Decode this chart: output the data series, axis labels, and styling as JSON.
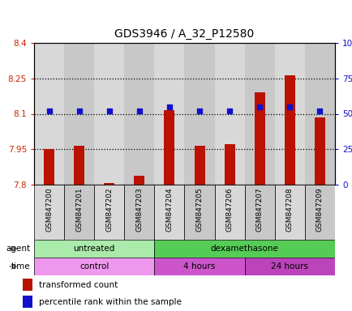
{
  "title": "GDS3946 / A_32_P12580",
  "samples": [
    "GSM847200",
    "GSM847201",
    "GSM847202",
    "GSM847203",
    "GSM847204",
    "GSM847205",
    "GSM847206",
    "GSM847207",
    "GSM847208",
    "GSM847209"
  ],
  "red_values": [
    7.951,
    7.966,
    7.806,
    7.836,
    8.115,
    7.963,
    7.972,
    8.19,
    8.262,
    8.083
  ],
  "blue_values": [
    52,
    52,
    52,
    52,
    55,
    52,
    52,
    55,
    55,
    52
  ],
  "ylim_left": [
    7.8,
    8.4
  ],
  "ylim_right": [
    0,
    100
  ],
  "yticks_left": [
    7.8,
    7.95,
    8.1,
    8.25,
    8.4
  ],
  "yticks_right": [
    0,
    25,
    50,
    75,
    100
  ],
  "ytick_labels_left": [
    "7.8",
    "7.95",
    "8.1",
    "8.25",
    "8.4"
  ],
  "ytick_labels_right": [
    "0",
    "25",
    "50",
    "75",
    "100%"
  ],
  "hlines": [
    7.95,
    8.1,
    8.25
  ],
  "agent_groups": [
    {
      "label": "untreated",
      "start": 0,
      "end": 4,
      "color": "#aaeaaa"
    },
    {
      "label": "dexamethasone",
      "start": 4,
      "end": 10,
      "color": "#55cc55"
    }
  ],
  "time_groups": [
    {
      "label": "control",
      "start": 0,
      "end": 4,
      "color": "#ee99ee"
    },
    {
      "label": "4 hours",
      "start": 4,
      "end": 7,
      "color": "#cc55cc"
    },
    {
      "label": "24 hours",
      "start": 7,
      "end": 10,
      "color": "#bb44bb"
    }
  ],
  "bar_color": "#bb1100",
  "dot_color": "#1111cc",
  "bar_bottom": 7.8,
  "plot_bg": "#ffffff",
  "col_bg_even": "#d8d8d8",
  "col_bg_odd": "#c8c8c8",
  "legend_red": "transformed count",
  "legend_blue": "percentile rank within the sample"
}
